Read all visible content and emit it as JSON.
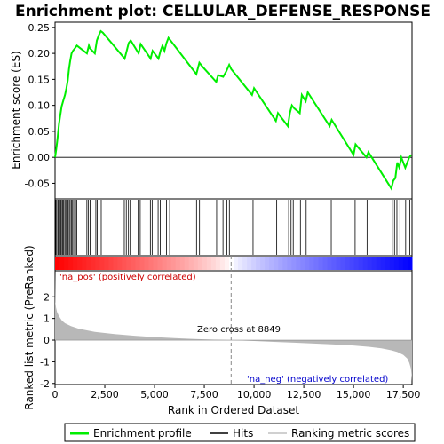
{
  "chart_data": {
    "type": "line",
    "title": "Enrichment plot: CELLULAR_DEFENSE_RESPONSE",
    "top_panel": {
      "ylabel": "Enrichment score (ES)",
      "ylim": [
        -0.08,
        0.26
      ],
      "yticks": [
        -0.05,
        0.0,
        0.05,
        0.1,
        0.15,
        0.2,
        0.25
      ],
      "ytick_labels": [
        "-0.05",
        "0.00",
        "0.05",
        "0.10",
        "0.15",
        "0.20",
        "0.25"
      ],
      "series": [
        {
          "name": "Enrichment profile",
          "color": "#00ee00",
          "x": [
            0,
            60,
            120,
            200,
            260,
            330,
            420,
            500,
            570,
            640,
            700,
            760,
            830,
            900,
            1000,
            1100,
            1600,
            1700,
            1750,
            2000,
            2100,
            2200,
            2300,
            2400,
            3500,
            3600,
            3700,
            3800,
            4200,
            4300,
            4800,
            4900,
            5200,
            5300,
            5400,
            5500,
            5600,
            5700,
            5800,
            7100,
            7250,
            7400,
            8100,
            8200,
            8450,
            8600,
            8750,
            8850,
            9900,
            10000,
            11100,
            11200,
            11700,
            11800,
            11900,
            12000,
            12300,
            12400,
            12600,
            12700,
            13800,
            13900,
            15000,
            15100,
            15650,
            15750,
            16900,
            17000,
            17100,
            17200,
            17300,
            17400,
            17600,
            17800,
            17900
          ],
          "y": [
            0.0,
            0.015,
            0.035,
            0.065,
            0.08,
            0.098,
            0.11,
            0.12,
            0.133,
            0.148,
            0.17,
            0.185,
            0.2,
            0.205,
            0.21,
            0.215,
            0.2,
            0.215,
            0.21,
            0.2,
            0.225,
            0.235,
            0.243,
            0.24,
            0.19,
            0.205,
            0.22,
            0.225,
            0.2,
            0.218,
            0.19,
            0.205,
            0.19,
            0.205,
            0.215,
            0.205,
            0.22,
            0.23,
            0.225,
            0.16,
            0.182,
            0.175,
            0.145,
            0.158,
            0.155,
            0.165,
            0.178,
            0.17,
            0.12,
            0.133,
            0.07,
            0.085,
            0.06,
            0.085,
            0.1,
            0.095,
            0.085,
            0.12,
            0.108,
            0.125,
            0.06,
            0.072,
            0.005,
            0.025,
            0.0,
            0.01,
            -0.06,
            -0.045,
            -0.04,
            -0.01,
            -0.02,
            0.0,
            -0.02,
            0.0,
            0.005
          ]
        }
      ]
    },
    "hits_panel": {
      "hit_positions": [
        40,
        90,
        150,
        190,
        230,
        280,
        320,
        380,
        430,
        490,
        540,
        590,
        650,
        710,
        760,
        820,
        880,
        940,
        1030,
        1090,
        1600,
        1680,
        1760,
        2050,
        2120,
        2210,
        2320,
        3480,
        3580,
        3690,
        3780,
        4180,
        4280,
        4790,
        4880,
        5180,
        5290,
        5420,
        5600,
        5760,
        7110,
        7260,
        8120,
        8440,
        8630,
        8760,
        9950,
        11140,
        11740,
        11860,
        11970,
        12330,
        12620,
        13880,
        15080,
        15680,
        16950,
        17060,
        17180,
        17330,
        17620,
        17830
      ]
    },
    "bottom_panel": {
      "ylabel": "Ranked list metric (PreRanked)",
      "xlabel": "Rank in Ordered Dataset",
      "ylim": [
        -2.05,
        3.2
      ],
      "yticks": [
        -2,
        -1,
        0,
        1,
        2
      ],
      "ytick_labels": [
        "-2",
        "-1",
        "0",
        "1",
        "2"
      ],
      "metric_x": [
        0,
        20,
        50,
        100,
        200,
        350,
        500,
        800,
        1200,
        2000,
        3000,
        4000,
        5000,
        6000,
        7000,
        8000,
        8849,
        10000,
        11000,
        12000,
        13000,
        14000,
        15000,
        15800,
        16400,
        16900,
        17200,
        17500,
        17700,
        17800,
        17880,
        17920,
        17940
      ],
      "metric_y": [
        3.15,
        1.75,
        1.5,
        1.3,
        1.1,
        0.9,
        0.78,
        0.65,
        0.52,
        0.38,
        0.28,
        0.2,
        0.14,
        0.09,
        0.05,
        0.02,
        0.0,
        -0.04,
        -0.08,
        -0.12,
        -0.16,
        -0.2,
        -0.25,
        -0.31,
        -0.38,
        -0.47,
        -0.55,
        -0.68,
        -0.85,
        -1.05,
        -1.3,
        -1.65,
        -1.9
      ],
      "zero_cross_label": "Zero cross at 8849",
      "zero_cross": 8849,
      "pos_label": "'na_pos' (positively correlated)",
      "neg_label": "'na_neg' (negatively correlated)"
    },
    "x_axis": {
      "xlim": [
        0,
        17940
      ],
      "xticks": [
        0,
        2500,
        5000,
        7500,
        10000,
        12500,
        15000,
        17500
      ],
      "xtick_labels": [
        "0",
        "2,500",
        "5,000",
        "7,500",
        "10,000",
        "12,500",
        "15,000",
        "17,500"
      ]
    },
    "legend": {
      "placement": "bottom",
      "items": [
        {
          "label": "Enrichment profile",
          "color": "#00ee00",
          "style": "line"
        },
        {
          "label": "Hits",
          "color": "#000000",
          "style": "line"
        },
        {
          "label": "Ranking metric scores",
          "color": "#c0c0c0",
          "style": "line"
        }
      ]
    },
    "colors": {
      "profile": "#00ee00",
      "hits": "#000000",
      "metric_fill": "#b8b8b8",
      "pos_text": "#cc0000",
      "neg_text": "#0000cc",
      "zero_line": "#888888"
    },
    "grid": false
  }
}
